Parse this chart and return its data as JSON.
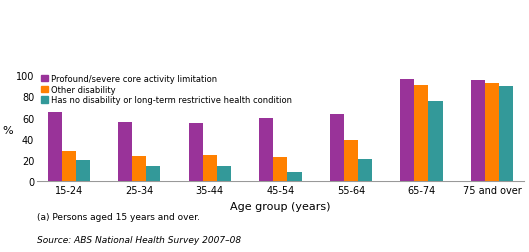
{
  "categories": [
    "15-24",
    "25-34",
    "35-44",
    "45-54",
    "55-64",
    "65-74",
    "75 and over"
  ],
  "series": {
    "Profound/severe core activity limitation": [
      65,
      56,
      55,
      60,
      63,
      96,
      95
    ],
    "Other disability": [
      28,
      24,
      25,
      23,
      39,
      91,
      93
    ],
    "Has no disability or long-term restrictive health condition": [
      20,
      14,
      14,
      9,
      21,
      76,
      90
    ]
  },
  "colors": {
    "Profound/severe core activity limitation": "#993399",
    "Other disability": "#FF8000",
    "Has no disability or long-term restrictive health condition": "#339999"
  },
  "ylabel": "%",
  "xlabel": "Age group (years)",
  "ylim": [
    0,
    105
  ],
  "yticks": [
    0,
    20,
    40,
    60,
    80,
    100
  ],
  "ytick_labels": [
    "0",
    "20",
    "40",
    "60",
    "80",
    "100"
  ],
  "grid_color": "#FFFFFF",
  "bg_color": "#FFFFFF",
  "footnote1": "(a) Persons aged 15 years and over.",
  "footnote2": "Source: ABS National Health Survey 2007–08",
  "legend_labels": [
    "Profound/severe core activity limitation",
    "Other disability",
    "Has no disability or long-term restrictive health condition"
  ],
  "bar_width": 0.2,
  "group_width": 1.0
}
